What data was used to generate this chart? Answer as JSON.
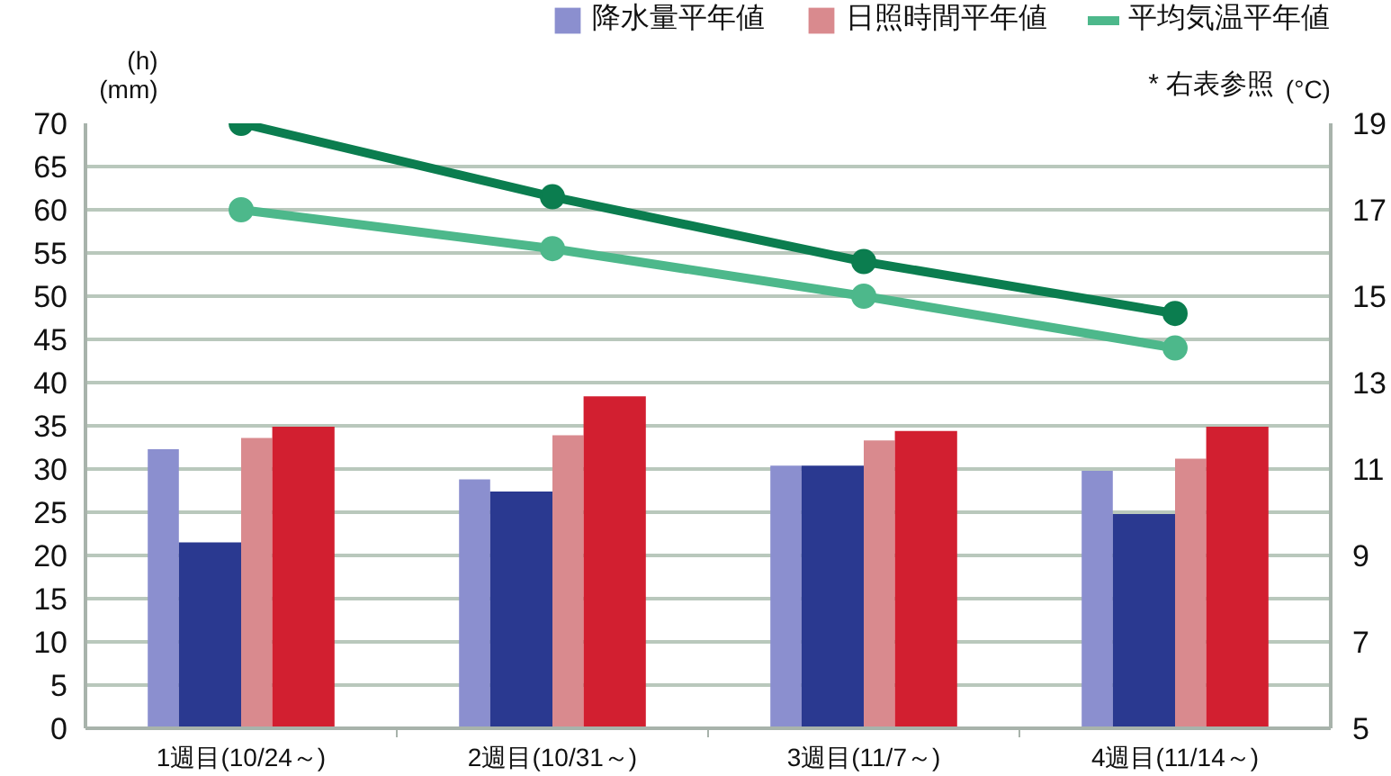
{
  "chart_data": {
    "type": "bar",
    "categories": [
      "1週目(10/24～)",
      "2週目(10/31～)",
      "3週目(11/7～)",
      "4週目(11/14～)"
    ],
    "ylabel": "(h)\n(mm)",
    "y2label": "(°C)",
    "ylim": [
      0,
      70
    ],
    "yticks": [
      0,
      5,
      10,
      15,
      20,
      25,
      30,
      35,
      40,
      45,
      50,
      55,
      60,
      65,
      70
    ],
    "y2lim": [
      5,
      19
    ],
    "y2ticks": [
      5,
      7,
      9,
      11,
      13,
      15,
      17,
      19
    ],
    "series": [
      {
        "name": "降水量平年値",
        "color": "#8b8fcf",
        "values": [
          32.3,
          28.8,
          30.4,
          29.8
        ]
      },
      {
        "color": "#2a3990",
        "values": [
          21.5,
          27.4,
          30.4,
          24.8
        ]
      },
      {
        "name": "日照時間平年値",
        "color": "#d98a8e",
        "values": [
          33.6,
          33.9,
          33.3,
          31.2
        ]
      },
      {
        "color": "#d21f30",
        "values": [
          34.9,
          38.4,
          34.4,
          34.9
        ]
      },
      {
        "type": "line",
        "axis": "y2",
        "color": "#0b7d4f",
        "values": [
          19.0,
          17.3,
          15.8,
          14.6
        ]
      },
      {
        "type": "line",
        "axis": "y2",
        "name": "平均気温平年値",
        "color": "#4db88b",
        "values": [
          17.0,
          16.1,
          15.0,
          13.8
        ]
      }
    ],
    "annotations": [
      "* 右表参照"
    ],
    "grid": "y",
    "legend": "top right",
    "marker": "circle",
    "line_style": "solid"
  }
}
